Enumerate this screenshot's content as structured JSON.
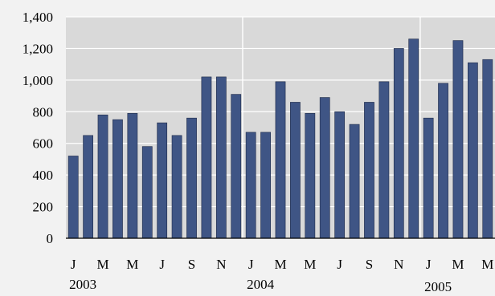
{
  "chart_data": {
    "type": "bar",
    "title": "",
    "xlabel": "",
    "ylabel": "",
    "ylim": [
      0,
      1400
    ],
    "yticks": [
      "0",
      "200",
      "400",
      "600",
      "800",
      "1,000",
      "1,200",
      "1,400"
    ],
    "grid": true,
    "legend": "none",
    "categories": [
      "Jan 2003",
      "Feb 2003",
      "Mar 2003",
      "Apr 2003",
      "May 2003",
      "Jun 2003",
      "Jul 2003",
      "Aug 2003",
      "Sep 2003",
      "Oct 2003",
      "Nov 2003",
      "Dec 2003",
      "Jan 2004",
      "Feb 2004",
      "Mar 2004",
      "Apr 2004",
      "May 2004",
      "Jun 2004",
      "Jul 2004",
      "Aug 2004",
      "Sep 2004",
      "Oct 2004",
      "Nov 2004",
      "Dec 2004",
      "Jan 2005",
      "Feb 2005",
      "Mar 2005",
      "Apr 2005",
      "May 2005"
    ],
    "month_tick_labels": [
      {
        "index": 0,
        "label": "J"
      },
      {
        "index": 2,
        "label": "M"
      },
      {
        "index": 4,
        "label": "M"
      },
      {
        "index": 6,
        "label": "J"
      },
      {
        "index": 8,
        "label": "S"
      },
      {
        "index": 10,
        "label": "N"
      },
      {
        "index": 12,
        "label": "J"
      },
      {
        "index": 14,
        "label": "M"
      },
      {
        "index": 16,
        "label": "M"
      },
      {
        "index": 18,
        "label": "J"
      },
      {
        "index": 20,
        "label": "S"
      },
      {
        "index": 22,
        "label": "N"
      },
      {
        "index": 24,
        "label": "J"
      },
      {
        "index": 26,
        "label": "M"
      },
      {
        "index": 28,
        "label": "M"
      }
    ],
    "year_labels": [
      {
        "label": "2003",
        "first_index": 0,
        "last_index": 11
      },
      {
        "label": "2004",
        "first_index": 12,
        "last_index": 23
      },
      {
        "label": "2005",
        "first_index": 24,
        "last_index": 28
      }
    ],
    "values": [
      520,
      650,
      780,
      750,
      790,
      580,
      730,
      650,
      760,
      1020,
      1020,
      910,
      670,
      670,
      990,
      860,
      790,
      890,
      800,
      720,
      860,
      990,
      1200,
      1260,
      760,
      980,
      1250,
      1110,
      1130
    ],
    "colors": {
      "bar": "#3f5585",
      "bar_stroke": "#1e2a48",
      "plot_bg": "#d9d9d9",
      "page_bg": "#f2f2f2",
      "gridline": "#ffffff",
      "axis": "#000000"
    }
  }
}
